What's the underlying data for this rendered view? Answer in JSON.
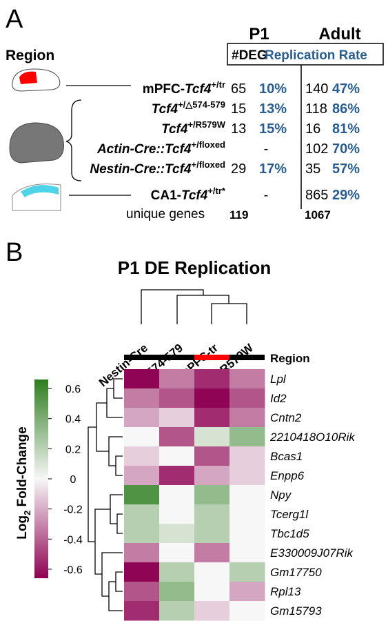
{
  "panel_a": {
    "label": "A",
    "region_heading": "Region",
    "columns": [
      "P1",
      "Adult"
    ],
    "deg_heading": "#DEG",
    "rate_heading": "Replication Rate",
    "rows": [
      {
        "prefix": "mPFC-",
        "gene": "Tcf4",
        "sup": "+/tr",
        "p1": [
          "65",
          "10%"
        ],
        "adult": [
          "140",
          "47%"
        ]
      },
      {
        "prefix": "",
        "gene": "Tcf4",
        "sup": "+/△574-579",
        "p1": [
          "15",
          "13%"
        ],
        "adult": [
          "118",
          "86%"
        ]
      },
      {
        "prefix": "",
        "gene": "Tcf4",
        "sup": "+/R579W",
        "p1": [
          "13",
          "15%"
        ],
        "adult": [
          "16",
          "81%"
        ]
      },
      {
        "prefix": "Actin-Cre::",
        "gene": "Tcf4",
        "sup": "+/floxed",
        "p1": [
          "-"
        ],
        "adult": [
          "102",
          "70%"
        ]
      },
      {
        "prefix": "Nestin-Cre::",
        "gene": "Tcf4",
        "sup": "+/floxed",
        "p1": [
          "29",
          "17%"
        ],
        "adult": [
          "35",
          "57%"
        ]
      },
      {
        "prefix": "CA1-",
        "gene": "Tcf4",
        "sup": "+/tr*",
        "p1": [
          "-"
        ],
        "adult": [
          "865",
          "29%"
        ]
      }
    ],
    "unique_label": "unique genes",
    "unique": [
      "119",
      "1067"
    ]
  },
  "chart_data": {
    "type": "heatmap",
    "panel_label": "B",
    "title": "P1 DE Replication",
    "columns": [
      "Nestin-Cre",
      "△574-579",
      "mPFC-tr",
      "R579W"
    ],
    "region_label": "Region",
    "region_colors": [
      "#000000",
      "#000000",
      "#ff0000",
      "#000000"
    ],
    "rows": [
      "Lpl",
      "Id2",
      "Cntn2",
      "2210418O10Rik",
      "Bcas1",
      "Enpp6",
      "Npy",
      "Tcerg1l",
      "Tbc1d5",
      "E330009J07Rik",
      "Gm17750",
      "Rpl13",
      "Gm15793"
    ],
    "values": [
      [
        -0.6,
        -0.3,
        -0.5,
        -0.3
      ],
      [
        -0.3,
        -0.4,
        -0.6,
        -0.4
      ],
      [
        -0.2,
        -0.1,
        -0.5,
        -0.3
      ],
      [
        0,
        -0.4,
        0.1,
        0.3
      ],
      [
        -0.1,
        0,
        -0.4,
        -0.1
      ],
      [
        -0.2,
        -0.5,
        -0.2,
        -0.1
      ],
      [
        0.5,
        0,
        0.3,
        0
      ],
      [
        0.2,
        0,
        0.2,
        0
      ],
      [
        0.2,
        0.1,
        0.2,
        0
      ],
      [
        -0.3,
        0,
        -0.3,
        0
      ],
      [
        -0.6,
        0.2,
        0,
        0.2
      ],
      [
        -0.4,
        0.3,
        0,
        -0.2
      ],
      [
        -0.5,
        0.2,
        -0.1,
        0
      ]
    ],
    "colorbar_label": "Log",
    "colorbar_label_sub": "2",
    "colorbar_label_rest": " Fold-Change",
    "ylim": [
      -0.66,
      0.66
    ],
    "yticks": [
      0.6,
      0.4,
      0.2,
      0,
      -0.2,
      -0.4,
      -0.6
    ],
    "low_color": "#8e0152",
    "mid_color": "#f7f7f7",
    "high_color": "#2e7d1f"
  }
}
